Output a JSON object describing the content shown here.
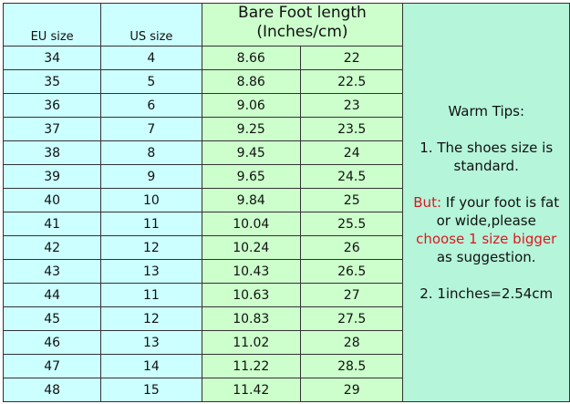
{
  "headers": {
    "eu": "EU size",
    "us": "US size",
    "foot_line1": "Bare Foot length",
    "foot_line2": "(Inches/cm)"
  },
  "rows": [
    [
      "34",
      "4",
      "8.66",
      "22"
    ],
    [
      "35",
      "5",
      "8.86",
      "22.5"
    ],
    [
      "36",
      "6",
      "9.06",
      "23"
    ],
    [
      "37",
      "7",
      "9.25",
      "23.5"
    ],
    [
      "38",
      "8",
      "9.45",
      "24"
    ],
    [
      "39",
      "9",
      "9.65",
      "24.5"
    ],
    [
      "40",
      "10",
      "9.84",
      "25"
    ],
    [
      "41",
      "11",
      "10.04",
      "25.5"
    ],
    [
      "42",
      "12",
      "10.24",
      "26"
    ],
    [
      "43",
      "13",
      "10.43",
      "26.5"
    ],
    [
      "44",
      "11",
      "10.63",
      "27"
    ],
    [
      "45",
      "12",
      "10.83",
      "27.5"
    ],
    [
      "46",
      "13",
      "11.02",
      "28"
    ],
    [
      "47",
      "14",
      "11.22",
      "28.5"
    ],
    [
      "48",
      "15",
      "11.42",
      "29"
    ]
  ],
  "tips": {
    "title": "Warm Tips:",
    "tip1": "1. The shoes size is standard.",
    "but_label": "But:",
    "tip2a": " If your foot is fat or wide,please",
    "tip2_highlight": "choose 1 size bigger",
    "tip2b": "as suggestion.",
    "tip3": "2. 1inches=2.54cm"
  },
  "colors": {
    "size_bg": "#ccffff",
    "foot_bg": "#ccffcc",
    "tips_bg": "#b5f5da",
    "highlight": "#e0161e"
  }
}
